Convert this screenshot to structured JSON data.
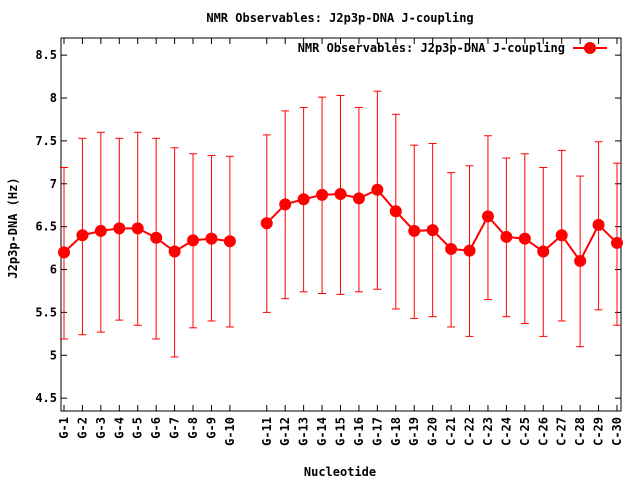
{
  "chart_data": {
    "type": "line",
    "title": "NMR Observables: J2p3p-DNA J-coupling",
    "xlabel": "Nucleotide",
    "ylabel": "J2p3p-DNA (Hz)",
    "ylim": [
      4.35,
      8.7
    ],
    "yticks": [
      4.5,
      5,
      5.5,
      6,
      6.5,
      7,
      7.5,
      8,
      8.5
    ],
    "ytick_labels": [
      "4.5",
      "5",
      "5.5",
      "6",
      "6.5",
      "7",
      "7.5",
      "8",
      "8.5"
    ],
    "legend_position": "top-right",
    "grid": false,
    "series": [
      {
        "name": "NMR Observables: J2p3p-DNA J-coupling",
        "color": "#ff0000",
        "points": [
          {
            "label": "G-1",
            "index": 1,
            "value": 6.2,
            "lo": 5.19,
            "hi": 7.19
          },
          {
            "label": "G-2",
            "index": 2,
            "value": 6.4,
            "lo": 5.24,
            "hi": 7.53
          },
          {
            "label": "G-3",
            "index": 3,
            "value": 6.45,
            "lo": 5.27,
            "hi": 7.6
          },
          {
            "label": "G-4",
            "index": 4,
            "value": 6.48,
            "lo": 5.41,
            "hi": 7.53
          },
          {
            "label": "G-5",
            "index": 5,
            "value": 6.48,
            "lo": 5.35,
            "hi": 7.6
          },
          {
            "label": "G-6",
            "index": 6,
            "value": 6.37,
            "lo": 5.19,
            "hi": 7.53
          },
          {
            "label": "G-7",
            "index": 7,
            "value": 6.21,
            "lo": 4.98,
            "hi": 7.42
          },
          {
            "label": "G-8",
            "index": 8,
            "value": 6.34,
            "lo": 5.32,
            "hi": 7.35
          },
          {
            "label": "G-9",
            "index": 9,
            "value": 6.36,
            "lo": 5.4,
            "hi": 7.33
          },
          {
            "label": "G-10",
            "index": 10,
            "value": 6.33,
            "lo": 5.33,
            "hi": 7.32
          },
          {
            "label": "G-11",
            "index": 12,
            "value": 6.54,
            "lo": 5.5,
            "hi": 7.57
          },
          {
            "label": "G-12",
            "index": 13,
            "value": 6.76,
            "lo": 5.66,
            "hi": 7.85
          },
          {
            "label": "G-13",
            "index": 14,
            "value": 6.82,
            "lo": 5.74,
            "hi": 7.89
          },
          {
            "label": "G-14",
            "index": 15,
            "value": 6.87,
            "lo": 5.72,
            "hi": 8.01
          },
          {
            "label": "G-15",
            "index": 16,
            "value": 6.88,
            "lo": 5.71,
            "hi": 8.03
          },
          {
            "label": "G-16",
            "index": 17,
            "value": 6.83,
            "lo": 5.74,
            "hi": 7.89
          },
          {
            "label": "G-17",
            "index": 18,
            "value": 6.93,
            "lo": 5.77,
            "hi": 8.08
          },
          {
            "label": "G-18",
            "index": 19,
            "value": 6.68,
            "lo": 5.54,
            "hi": 7.81
          },
          {
            "label": "G-19",
            "index": 20,
            "value": 6.45,
            "lo": 5.43,
            "hi": 7.45
          },
          {
            "label": "G-20",
            "index": 21,
            "value": 6.46,
            "lo": 5.45,
            "hi": 7.47
          },
          {
            "label": "C-21",
            "index": 22,
            "value": 6.24,
            "lo": 5.33,
            "hi": 7.13
          },
          {
            "label": "C-22",
            "index": 23,
            "value": 6.22,
            "lo": 5.22,
            "hi": 7.21
          },
          {
            "label": "C-23",
            "index": 24,
            "value": 6.62,
            "lo": 5.65,
            "hi": 7.56
          },
          {
            "label": "C-24",
            "index": 25,
            "value": 6.38,
            "lo": 5.45,
            "hi": 7.3
          },
          {
            "label": "C-25",
            "index": 26,
            "value": 6.36,
            "lo": 5.37,
            "hi": 7.35
          },
          {
            "label": "C-26",
            "index": 27,
            "value": 6.21,
            "lo": 5.22,
            "hi": 7.19
          },
          {
            "label": "C-27",
            "index": 28,
            "value": 6.4,
            "lo": 5.4,
            "hi": 7.39
          },
          {
            "label": "C-28",
            "index": 29,
            "value": 6.1,
            "lo": 5.1,
            "hi": 7.09
          },
          {
            "label": "C-29",
            "index": 30,
            "value": 6.52,
            "lo": 5.53,
            "hi": 7.49
          },
          {
            "label": "C-30",
            "index": 31,
            "value": 6.31,
            "lo": 5.35,
            "hi": 7.24
          }
        ]
      }
    ]
  }
}
